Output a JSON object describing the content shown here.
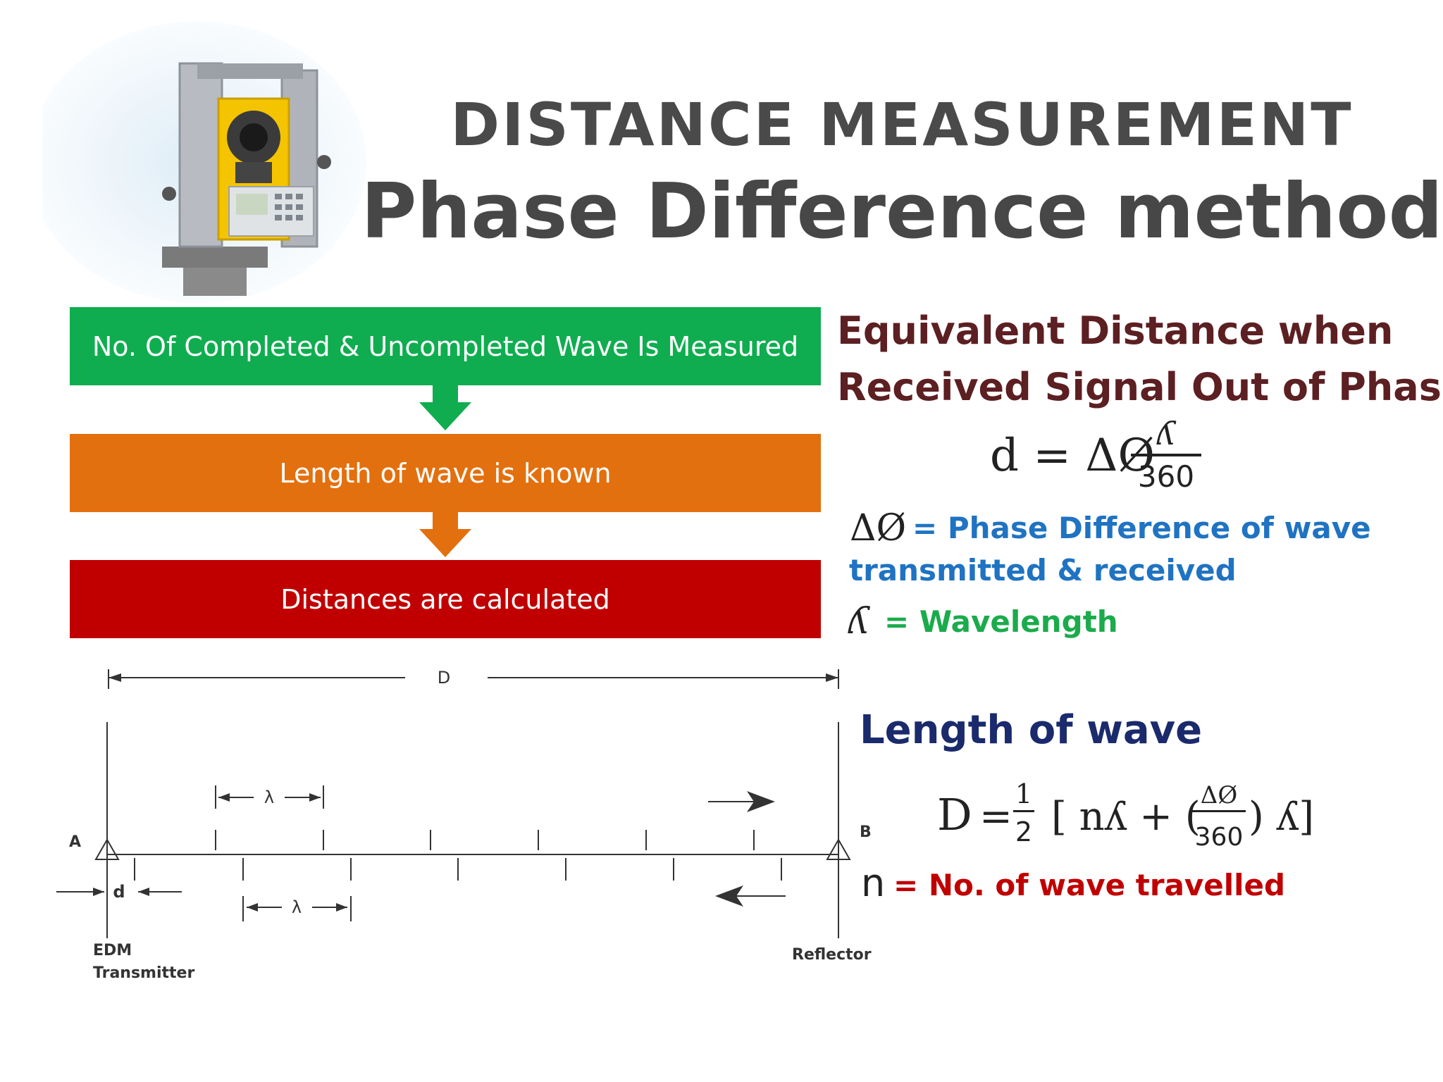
{
  "title": {
    "line1": "DISTANCE MEASUREMENT",
    "line2": "Phase Difference method"
  },
  "flow": {
    "steps": [
      "No. Of Completed & Uncompleted Wave Is Measured",
      "Length of wave is known",
      "Distances are calculated"
    ],
    "colors": [
      "#0fad4f",
      "#e3700e",
      "#c00000"
    ]
  },
  "equivalent": {
    "heading_line1": "Equivalent Distance when",
    "heading_line2": "Received Signal Out of Phase",
    "formula_lhs": "d = ΔØ",
    "formula_num": "ʎ",
    "formula_den": "360",
    "def1_symbol": "ΔØ",
    "def1_text": "= Phase Difference of wave transmitted & received",
    "def2_symbol": "ʎ",
    "def2_text": "= Wavelength"
  },
  "length_of_wave": {
    "heading": "Length of wave",
    "formula_D": "D",
    "formula_eq": "=",
    "formula_half_num": "1",
    "formula_half_den": "2",
    "formula_open": "[ nʎ + (",
    "formula_inner_num": "ΔØ",
    "formula_inner_den": "360",
    "formula_close": ") ʎ]",
    "n_symbol": "n",
    "n_text": "= No. of wave travelled"
  },
  "diagram": {
    "total_label": "D",
    "wavelength_label": "λ",
    "offset_label": "d",
    "point_a": "A",
    "point_b": "B",
    "transmitter_line1": "EDM",
    "transmitter_line2": "Transmitter",
    "reflector": "Reflector"
  }
}
